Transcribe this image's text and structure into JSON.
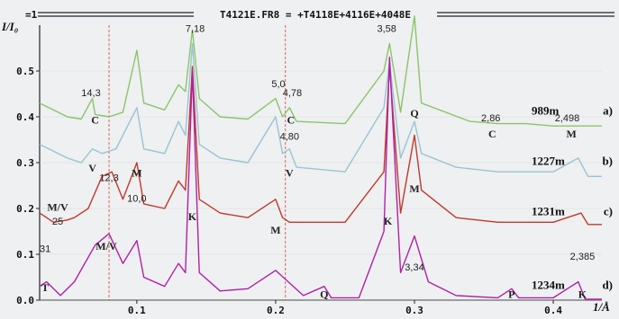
{
  "chart_data": {
    "type": "line",
    "header": "=1",
    "title": "T4121E.FR8 = +T4118E+4116E+4048E",
    "ylabel": "I/I₀",
    "xlabel": "1/Å",
    "xlim": [
      0.03,
      0.435
    ],
    "ylim": [
      0,
      0.6
    ],
    "yticks": [
      "0.0",
      "0.1",
      "0.2",
      "0.3",
      "0.4",
      "0.5"
    ],
    "xticks": [
      "0.1",
      "0.2",
      "0.3",
      "0.4"
    ],
    "reference_lines": [
      0.08,
      0.207
    ],
    "series": [
      {
        "name": "989m",
        "tag": "a)",
        "color": "#8cc46a",
        "offset": 0.38,
        "points": [
          [
            0.03,
            0.05
          ],
          [
            0.05,
            0.02
          ],
          [
            0.06,
            0.015
          ],
          [
            0.068,
            0.06
          ],
          [
            0.07,
            0.025
          ],
          [
            0.08,
            0.02
          ],
          [
            0.09,
            0.03
          ],
          [
            0.1,
            0.165
          ],
          [
            0.105,
            0.05
          ],
          [
            0.12,
            0.035
          ],
          [
            0.13,
            0.09
          ],
          [
            0.135,
            0.075
          ],
          [
            0.14,
            0.21
          ],
          [
            0.145,
            0.06
          ],
          [
            0.16,
            0.02
          ],
          [
            0.18,
            0.015
          ],
          [
            0.2,
            0.06
          ],
          [
            0.205,
            0.02
          ],
          [
            0.21,
            0.04
          ],
          [
            0.215,
            0.01
          ],
          [
            0.25,
            0.005
          ],
          [
            0.278,
            0.12
          ],
          [
            0.282,
            0.18
          ],
          [
            0.29,
            0.03
          ],
          [
            0.3,
            0.24
          ],
          [
            0.305,
            0.05
          ],
          [
            0.34,
            0.01
          ],
          [
            0.36,
            0.005
          ],
          [
            0.38,
            0.005
          ],
          [
            0.4,
            0.0
          ],
          [
            0.435,
            0.0
          ]
        ]
      },
      {
        "name": "1227m",
        "tag": "b)",
        "color": "#9ac3d2",
        "offset": 0.27,
        "points": [
          [
            0.03,
            0.07
          ],
          [
            0.05,
            0.04
          ],
          [
            0.06,
            0.03
          ],
          [
            0.068,
            0.06
          ],
          [
            0.075,
            0.05
          ],
          [
            0.085,
            0.06
          ],
          [
            0.1,
            0.15
          ],
          [
            0.105,
            0.06
          ],
          [
            0.12,
            0.05
          ],
          [
            0.13,
            0.12
          ],
          [
            0.135,
            0.09
          ],
          [
            0.14,
            0.29
          ],
          [
            0.145,
            0.07
          ],
          [
            0.16,
            0.04
          ],
          [
            0.18,
            0.03
          ],
          [
            0.2,
            0.13
          ],
          [
            0.205,
            0.05
          ],
          [
            0.21,
            0.06
          ],
          [
            0.215,
            0.02
          ],
          [
            0.25,
            0.01
          ],
          [
            0.278,
            0.15
          ],
          [
            0.282,
            0.25
          ],
          [
            0.29,
            0.04
          ],
          [
            0.3,
            0.12
          ],
          [
            0.305,
            0.05
          ],
          [
            0.33,
            0.02
          ],
          [
            0.36,
            0.01
          ],
          [
            0.4,
            0.01
          ],
          [
            0.418,
            0.04
          ],
          [
            0.425,
            0.0
          ],
          [
            0.435,
            0.0
          ]
        ]
      },
      {
        "name": "1231m",
        "tag": "c)",
        "color": "#c0392b",
        "offset": 0.16,
        "points": [
          [
            0.03,
            0.03
          ],
          [
            0.04,
            0.01
          ],
          [
            0.05,
            0.015
          ],
          [
            0.055,
            0.02
          ],
          [
            0.065,
            0.04
          ],
          [
            0.075,
            0.11
          ],
          [
            0.082,
            0.12
          ],
          [
            0.09,
            0.06
          ],
          [
            0.1,
            0.14
          ],
          [
            0.105,
            0.05
          ],
          [
            0.12,
            0.04
          ],
          [
            0.13,
            0.1
          ],
          [
            0.135,
            0.08
          ],
          [
            0.14,
            0.35
          ],
          [
            0.145,
            0.06
          ],
          [
            0.16,
            0.03
          ],
          [
            0.18,
            0.02
          ],
          [
            0.2,
            0.06
          ],
          [
            0.205,
            0.02
          ],
          [
            0.21,
            0.01
          ],
          [
            0.25,
            0.01
          ],
          [
            0.278,
            0.12
          ],
          [
            0.282,
            0.35
          ],
          [
            0.29,
            0.03
          ],
          [
            0.3,
            0.2
          ],
          [
            0.305,
            0.08
          ],
          [
            0.33,
            0.02
          ],
          [
            0.36,
            0.01
          ],
          [
            0.4,
            0.01
          ],
          [
            0.42,
            0.03
          ],
          [
            0.425,
            0.005
          ],
          [
            0.435,
            0.005
          ]
        ]
      },
      {
        "name": "1234m",
        "tag": "d)",
        "color": "#b020a8",
        "offset": 0.0,
        "points": [
          [
            0.03,
            0.03
          ],
          [
            0.035,
            0.04
          ],
          [
            0.04,
            0.025
          ],
          [
            0.045,
            0.01
          ],
          [
            0.055,
            0.04
          ],
          [
            0.07,
            0.12
          ],
          [
            0.08,
            0.145
          ],
          [
            0.09,
            0.08
          ],
          [
            0.1,
            0.13
          ],
          [
            0.105,
            0.05
          ],
          [
            0.12,
            0.03
          ],
          [
            0.13,
            0.08
          ],
          [
            0.135,
            0.06
          ],
          [
            0.14,
            0.5
          ],
          [
            0.145,
            0.06
          ],
          [
            0.16,
            0.02
          ],
          [
            0.18,
            0.025
          ],
          [
            0.2,
            0.065
          ],
          [
            0.22,
            0.01
          ],
          [
            0.235,
            0.03
          ],
          [
            0.24,
            0.005
          ],
          [
            0.26,
            0.005
          ],
          [
            0.278,
            0.15
          ],
          [
            0.282,
            0.53
          ],
          [
            0.29,
            0.06
          ],
          [
            0.3,
            0.14
          ],
          [
            0.31,
            0.04
          ],
          [
            0.33,
            0.01
          ],
          [
            0.36,
            0.005
          ],
          [
            0.37,
            0.025
          ],
          [
            0.375,
            0.005
          ],
          [
            0.4,
            0.005
          ],
          [
            0.418,
            0.04
          ],
          [
            0.423,
            0.002
          ],
          [
            0.435,
            0.002
          ]
        ]
      }
    ],
    "annotations": [
      {
        "text": "7,18",
        "x": 0.142,
        "y": 0.585,
        "style": "peak"
      },
      {
        "text": "3,58",
        "x": 0.28,
        "y": 0.585,
        "style": "peak"
      },
      {
        "text": "14,3",
        "x": 0.067,
        "y": 0.445,
        "style": "peak"
      },
      {
        "text": "5,0",
        "x": 0.202,
        "y": 0.465,
        "style": "peak"
      },
      {
        "text": "4,78",
        "x": 0.212,
        "y": 0.445,
        "style": "peak"
      },
      {
        "text": "2,86",
        "x": 0.355,
        "y": 0.39,
        "style": "peak"
      },
      {
        "text": "2,498",
        "x": 0.41,
        "y": 0.39,
        "style": "peak"
      },
      {
        "text": "4,80",
        "x": 0.21,
        "y": 0.35,
        "style": "peak"
      },
      {
        "text": "12,3",
        "x": 0.08,
        "y": 0.26,
        "style": "peak"
      },
      {
        "text": "10,0",
        "x": 0.1,
        "y": 0.215,
        "style": "peak"
      },
      {
        "text": "25",
        "x": 0.043,
        "y": 0.165,
        "style": "peak"
      },
      {
        "text": "31",
        "x": 0.034,
        "y": 0.105,
        "style": "peak"
      },
      {
        "text": "3,34",
        "x": 0.3,
        "y": 0.065,
        "style": "peak"
      },
      {
        "text": "2,385",
        "x": 0.421,
        "y": 0.088,
        "style": "peak"
      },
      {
        "text": "C",
        "x": 0.07,
        "y": 0.385,
        "style": "mineral"
      },
      {
        "text": "C",
        "x": 0.211,
        "y": 0.385,
        "style": "mineral"
      },
      {
        "text": "Q",
        "x": 0.3,
        "y": 0.4,
        "style": "mineral"
      },
      {
        "text": "C",
        "x": 0.356,
        "y": 0.355,
        "style": "mineral"
      },
      {
        "text": "M",
        "x": 0.413,
        "y": 0.355,
        "style": "mineral"
      },
      {
        "text": "V",
        "x": 0.068,
        "y": 0.28,
        "style": "mineral"
      },
      {
        "text": "M",
        "x": 0.1,
        "y": 0.27,
        "style": "mineral"
      },
      {
        "text": "V",
        "x": 0.21,
        "y": 0.27,
        "style": "mineral"
      },
      {
        "text": "M",
        "x": 0.3,
        "y": 0.235,
        "style": "mineral"
      },
      {
        "text": "M/V",
        "x": 0.043,
        "y": 0.195,
        "style": "mineral"
      },
      {
        "text": "M/V",
        "x": 0.078,
        "y": 0.11,
        "style": "mineral"
      },
      {
        "text": "K",
        "x": 0.14,
        "y": 0.175,
        "style": "mineral"
      },
      {
        "text": "M",
        "x": 0.2,
        "y": 0.145,
        "style": "mineral"
      },
      {
        "text": "K",
        "x": 0.281,
        "y": 0.165,
        "style": "mineral"
      },
      {
        "text": "T",
        "x": 0.034,
        "y": 0.02,
        "style": "mineral"
      },
      {
        "text": "Q",
        "x": 0.235,
        "y": 0.005,
        "style": "mineral"
      },
      {
        "text": "P",
        "x": 0.37,
        "y": 0.005,
        "style": "mineral"
      },
      {
        "text": "K",
        "x": 0.421,
        "y": 0.005,
        "style": "mineral"
      }
    ]
  }
}
